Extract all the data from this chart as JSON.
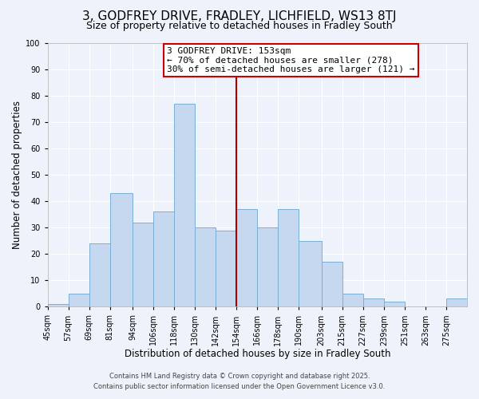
{
  "title": "3, GODFREY DRIVE, FRADLEY, LICHFIELD, WS13 8TJ",
  "subtitle": "Size of property relative to detached houses in Fradley South",
  "xlabel": "Distribution of detached houses by size in Fradley South",
  "ylabel": "Number of detached properties",
  "footnote1": "Contains HM Land Registry data © Crown copyright and database right 2025.",
  "footnote2": "Contains public sector information licensed under the Open Government Licence v3.0.",
  "bin_edges": [
    45,
    57,
    69,
    81,
    94,
    106,
    118,
    130,
    142,
    154,
    166,
    178,
    190,
    203,
    215,
    227,
    239,
    251,
    263,
    275,
    287
  ],
  "bar_heights": [
    1,
    5,
    24,
    43,
    32,
    36,
    77,
    30,
    29,
    37,
    30,
    37,
    25,
    17,
    5,
    3,
    2,
    0,
    0,
    3
  ],
  "bar_color": "#c5d8f0",
  "bar_edge_color": "#7aafd4",
  "vline_x": 154,
  "vline_color": "#aa0000",
  "annotation_title": "3 GODFREY DRIVE: 153sqm",
  "annotation_line1": "← 70% of detached houses are smaller (278)",
  "annotation_line2": "30% of semi-detached houses are larger (121) →",
  "annotation_box_color": "#cc0000",
  "ylim": [
    0,
    100
  ],
  "yticks": [
    0,
    10,
    20,
    30,
    40,
    50,
    60,
    70,
    80,
    90,
    100
  ],
  "background_color": "#eef2fa",
  "grid_color": "#ffffff",
  "title_fontsize": 11,
  "subtitle_fontsize": 9,
  "axis_label_fontsize": 8.5,
  "tick_fontsize": 7,
  "annotation_fontsize": 8,
  "footnote_fontsize": 6
}
